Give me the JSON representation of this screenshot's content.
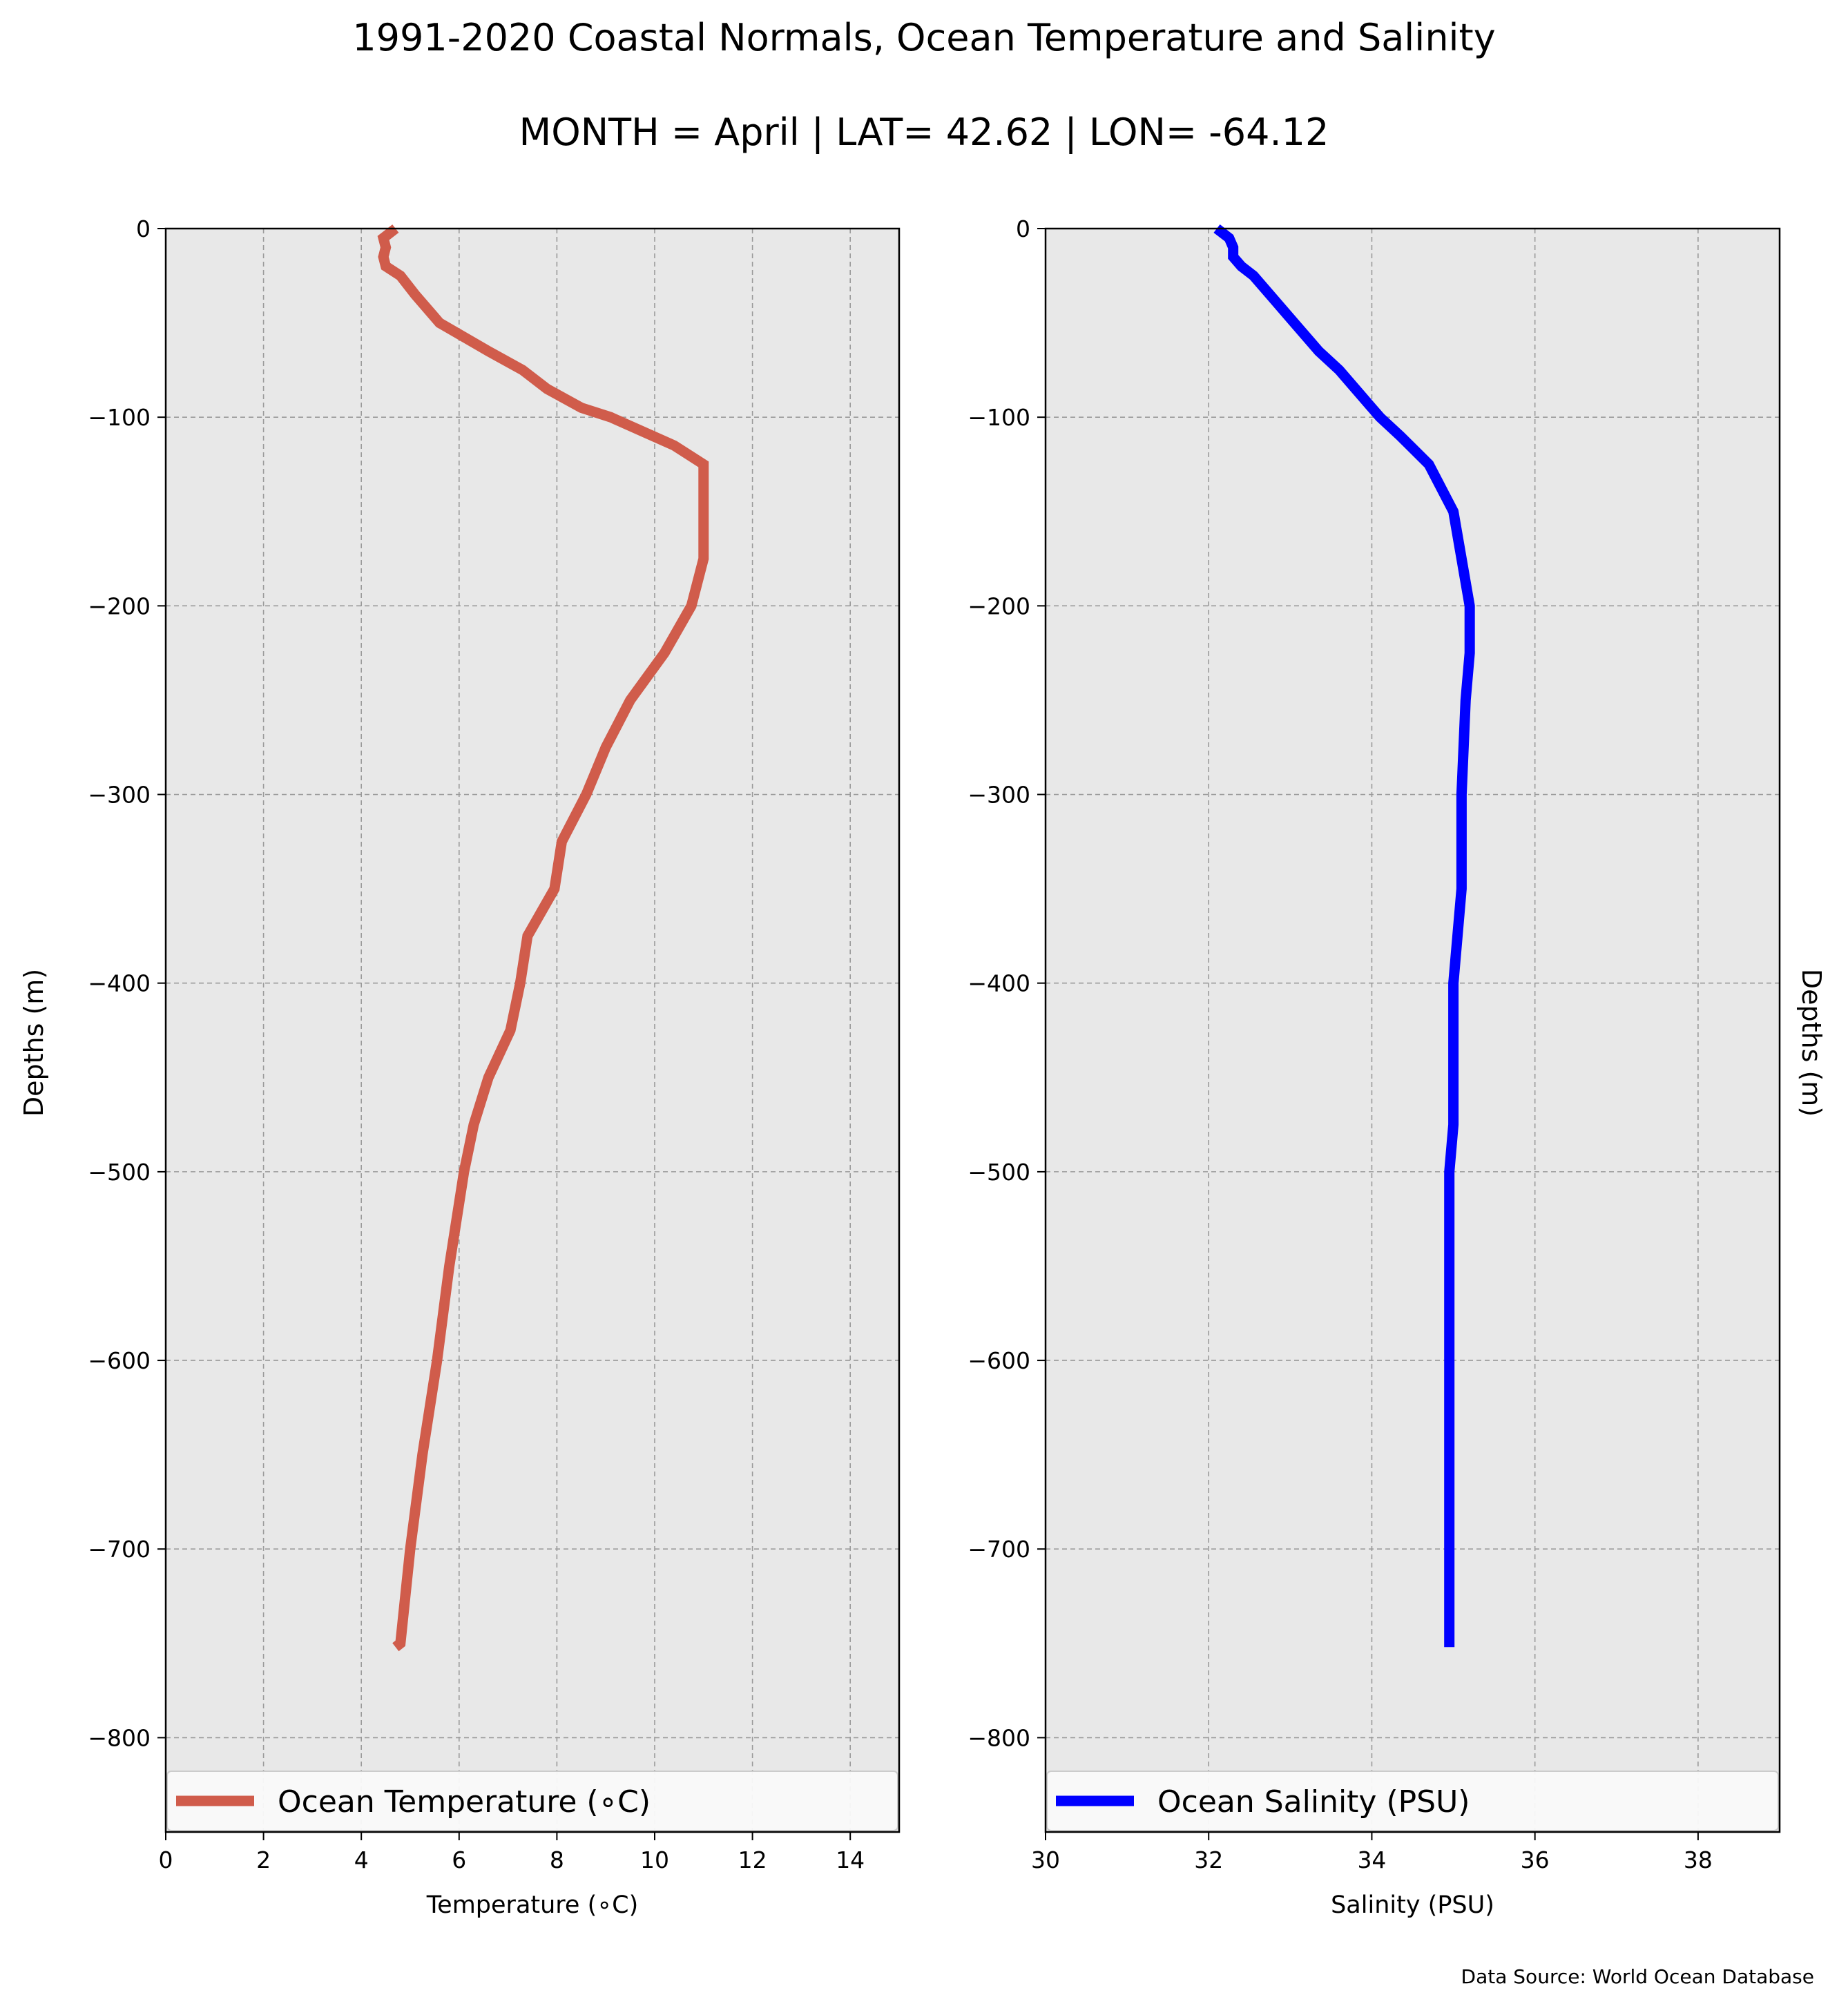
{
  "title": "1991-2020 Coastal Normals, Ocean Temperature and Salinity",
  "subtitle": "MONTH = April | LAT= 42.62 | LON= -64.12",
  "source": "Data Source: World Ocean Database",
  "colors": {
    "temperature": "#d05c4b",
    "salinity": "#0000ff",
    "axes_bg": "#e8e8e8",
    "grid": "#9a9a9a"
  },
  "chart_data": [
    {
      "type": "line",
      "xlabel": "Temperature (∘C)",
      "ylabel": "Depths (m)",
      "xlim": [
        0,
        15
      ],
      "ylim": [
        -850,
        0
      ],
      "xticks": [
        "0",
        "2",
        "4",
        "6",
        "8",
        "10",
        "12",
        "14"
      ],
      "yticks": [
        "0",
        "−100",
        "−200",
        "−300",
        "−400",
        "−500",
        "−600",
        "−700",
        "−800"
      ],
      "grid": true,
      "legend_position": "bottom",
      "series": [
        {
          "name": "Ocean Temperature (∘C)",
          "x": [
            4.7,
            4.45,
            4.5,
            4.45,
            4.5,
            4.8,
            5.1,
            5.6,
            6.6,
            7.3,
            7.8,
            8.5,
            9.1,
            10.4,
            11.0,
            11.0,
            10.75,
            10.2,
            9.5,
            9.0,
            8.6,
            8.1,
            7.95,
            7.4,
            7.25,
            7.05,
            6.6,
            6.3,
            6.1,
            5.8,
            5.55,
            5.25,
            5.0,
            4.8,
            4.7
          ],
          "y": [
            0,
            -5,
            -10,
            -15,
            -20,
            -25,
            -35,
            -50,
            -65,
            -75,
            -85,
            -95,
            -100,
            -115,
            -125,
            -175,
            -200,
            -225,
            -250,
            -275,
            -300,
            -325,
            -350,
            -375,
            -400,
            -425,
            -450,
            -475,
            -500,
            -550,
            -600,
            -650,
            -700,
            -750,
            -752
          ]
        }
      ]
    },
    {
      "type": "line",
      "xlabel": "Salinity (PSU)",
      "ylabel": "Depths (m)",
      "xlim": [
        30,
        39
      ],
      "ylim": [
        -850,
        0
      ],
      "xticks": [
        "30",
        "32",
        "34",
        "36",
        "38"
      ],
      "yticks": [
        "0",
        "−100",
        "−200",
        "−300",
        "−400",
        "−500",
        "−600",
        "−700",
        "−800"
      ],
      "grid": true,
      "legend_position": "bottom",
      "series": [
        {
          "name": "Ocean Salinity (PSU)",
          "x": [
            32.1,
            32.25,
            32.3,
            32.3,
            32.4,
            32.55,
            32.75,
            33.05,
            33.35,
            33.6,
            33.8,
            34.0,
            34.1,
            34.35,
            34.7,
            35.0,
            35.1,
            35.2,
            35.2,
            35.15,
            35.1,
            35.1,
            35.05,
            35.0,
            35.0,
            35.0,
            35.0,
            34.95,
            34.95,
            34.95,
            34.95,
            34.95,
            34.95,
            34.95
          ],
          "y": [
            0,
            -5,
            -10,
            -15,
            -20,
            -25,
            -35,
            -50,
            -65,
            -75,
            -85,
            -95,
            -100,
            -110,
            -125,
            -150,
            -175,
            -200,
            -225,
            -250,
            -300,
            -350,
            -375,
            -400,
            -425,
            -450,
            -475,
            -500,
            -550,
            -600,
            -650,
            -700,
            -750,
            -752
          ]
        }
      ]
    }
  ]
}
